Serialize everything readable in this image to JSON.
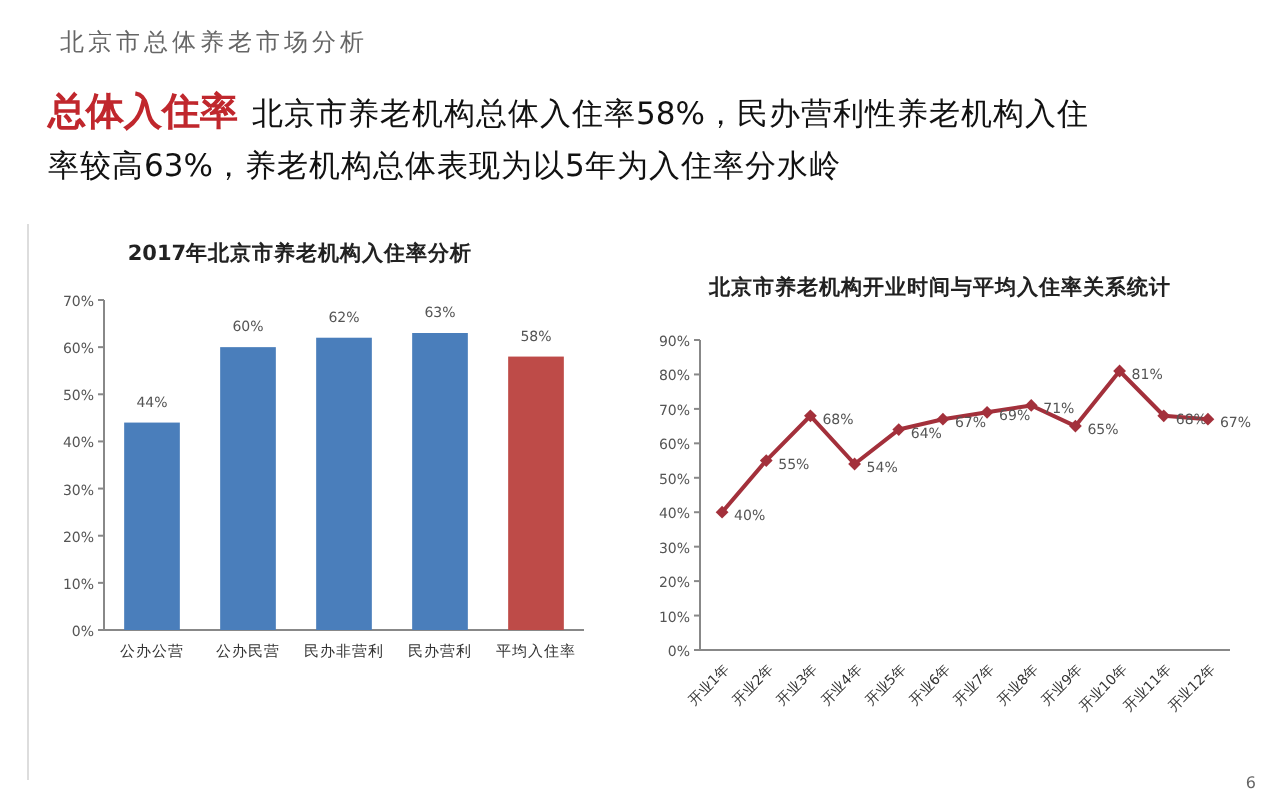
{
  "chart_data": [
    {
      "type": "other",
      "title": "总体入住率",
      "subtitle": "北京市养老机构总体入住率58%，民办营利性养老机构入住率较高63%，养老机构总体表现为以5年为入住率分水岭",
      "annotations": [
        "北京市总体养老市场分析",
        "6"
      ]
    },
    {
      "type": "bar",
      "title": "2017年北京市养老机构入住率分析",
      "categories": [
        "公办公营",
        "公办民营",
        "民办非营利",
        "民办营利",
        "平均入住率"
      ],
      "values": [
        44,
        60,
        62,
        63,
        58
      ],
      "colors": [
        "#4a7ebb",
        "#4a7ebb",
        "#4a7ebb",
        "#4a7ebb",
        "#be4b48"
      ],
      "value_labels": [
        "44%",
        "60%",
        "62%",
        "63%",
        "58%"
      ],
      "ylim": [
        0,
        70
      ],
      "yticks": [
        {
          "value": 0,
          "label": "0%"
        },
        {
          "value": 10,
          "label": "10%"
        },
        {
          "value": 20,
          "label": "20%"
        },
        {
          "value": 30,
          "label": "30%"
        },
        {
          "value": 40,
          "label": "40%"
        },
        {
          "value": 50,
          "label": "50%"
        },
        {
          "value": 60,
          "label": "60%"
        },
        {
          "value": 70,
          "label": "70%"
        }
      ]
    },
    {
      "type": "line",
      "title": "北京市养老机构开业时间与平均入住率关系统计",
      "categories": [
        "开业1年",
        "开业2年",
        "开业3年",
        "开业4年",
        "开业5年",
        "开业6年",
        "开业7年",
        "开业8年",
        "开业9年",
        "开业10年",
        "开业11年",
        "开业12年"
      ],
      "marker": "diamond",
      "line_style": "solid",
      "series": [
        {
          "color": "#a3303b",
          "values": [
            40,
            55,
            68,
            54,
            64,
            67,
            69,
            71,
            65,
            81,
            68,
            67
          ],
          "value_labels": [
            "40%",
            "55%",
            "68%",
            "54%",
            "64%",
            "67%",
            "69%",
            "71%",
            "65%",
            "81%",
            "68%",
            "67%"
          ]
        }
      ],
      "ylim": [
        0,
        90
      ],
      "yticks": [
        {
          "value": 0,
          "label": "0%"
        },
        {
          "value": 10,
          "label": "10%"
        },
        {
          "value": 20,
          "label": "20%"
        },
        {
          "value": 30,
          "label": "30%"
        },
        {
          "value": 40,
          "label": "40%"
        },
        {
          "value": 50,
          "label": "50%"
        },
        {
          "value": 60,
          "label": "60%"
        },
        {
          "value": 70,
          "label": "70%"
        },
        {
          "value": 80,
          "label": "80%"
        },
        {
          "value": 90,
          "label": "90%"
        }
      ]
    }
  ]
}
